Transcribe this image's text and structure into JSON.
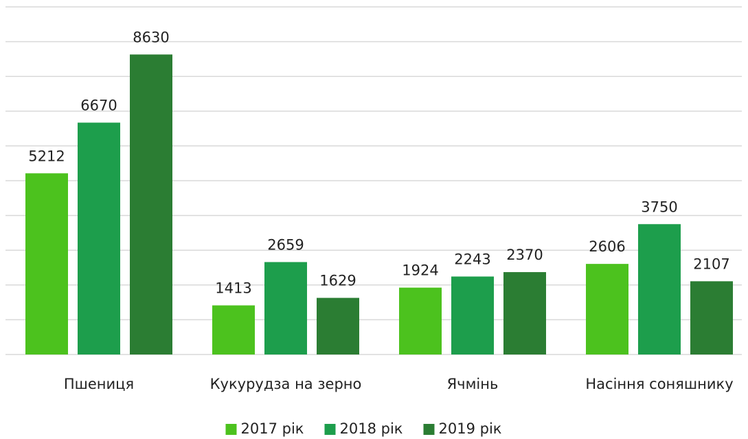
{
  "chart_data": {
    "type": "bar",
    "categories": [
      "Пшениця",
      "Кукурудза на зерно",
      "Ячмінь",
      "Насіння соняшнику"
    ],
    "series": [
      {
        "name": "2017 рік",
        "color": "#4cc21e",
        "values": [
          5212,
          1413,
          1924,
          2606
        ]
      },
      {
        "name": "2018 рік",
        "color": "#1d9e4c",
        "values": [
          6670,
          2659,
          2243,
          3750
        ]
      },
      {
        "name": "2019 рік",
        "color": "#2b7d33",
        "values": [
          8630,
          1629,
          2370,
          2107
        ]
      }
    ],
    "ylim": [
      0,
      10000
    ],
    "yticks": [
      0,
      1000,
      2000,
      3000,
      4000,
      5000,
      6000,
      7000,
      8000,
      9000,
      10000
    ],
    "grid": true,
    "legend": "bottom"
  }
}
